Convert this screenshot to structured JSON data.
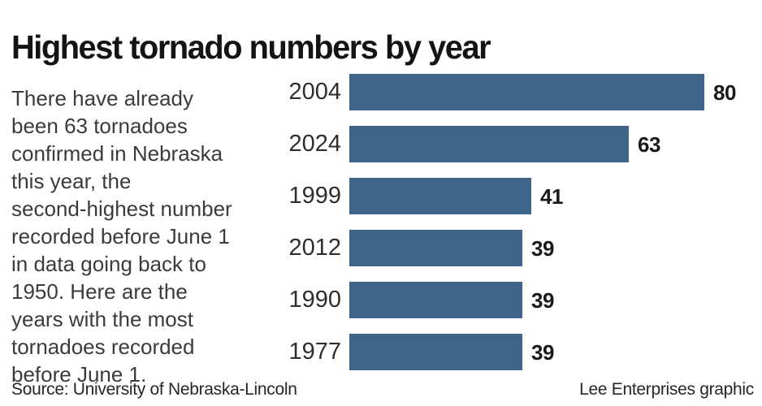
{
  "title": "Highest tornado numbers by year",
  "description": "There have already\nbeen 63 tornadoes\nconfirmed in Nebraska\nthis year, the\nsecond-highest number\nrecorded before June 1\nin data going back to\n1950. Here are the\nyears with the most\ntornadoes recorded\nbefore June 1.",
  "footer": {
    "source": "Source: University of Nebraska-Lincoln",
    "credit": "Lee Enterprises graphic"
  },
  "colors": {
    "bar": "#3f6489",
    "title_text": "#141414",
    "body_text": "#3b3b3b"
  },
  "chart_data": {
    "type": "bar",
    "orientation": "horizontal",
    "title": "Highest tornado numbers by year",
    "categories": [
      "2004",
      "2024",
      "1999",
      "2012",
      "1990",
      "1977"
    ],
    "values": [
      80,
      63,
      41,
      39,
      39,
      39
    ],
    "xlabel": "",
    "ylabel": "",
    "xlim": [
      0,
      88
    ],
    "grid": false,
    "legend": false,
    "value_labels": true
  }
}
